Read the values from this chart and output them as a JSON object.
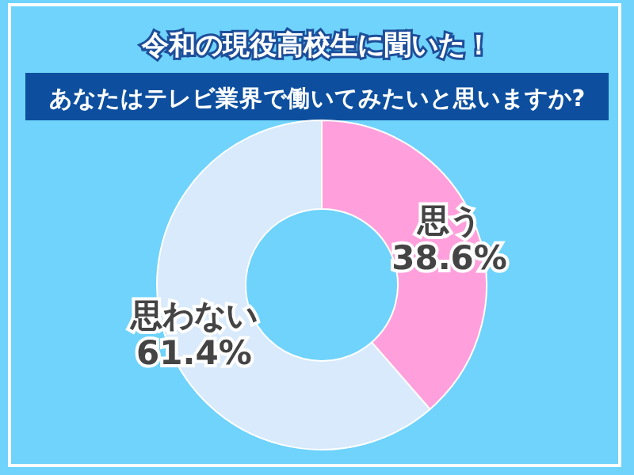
{
  "chart_data": {
    "type": "donut",
    "title": "令和の現役高校生に聞いた！",
    "subtitle": "あなたはテレビ業界で働いてみたいと思いますか?",
    "categories": [
      "思う",
      "思わない"
    ],
    "values": [
      38.6,
      61.4
    ],
    "colors": [
      "#ffa0dc",
      "#d8eafc"
    ],
    "value_labels": [
      "38.6%",
      "61.4%"
    ]
  }
}
